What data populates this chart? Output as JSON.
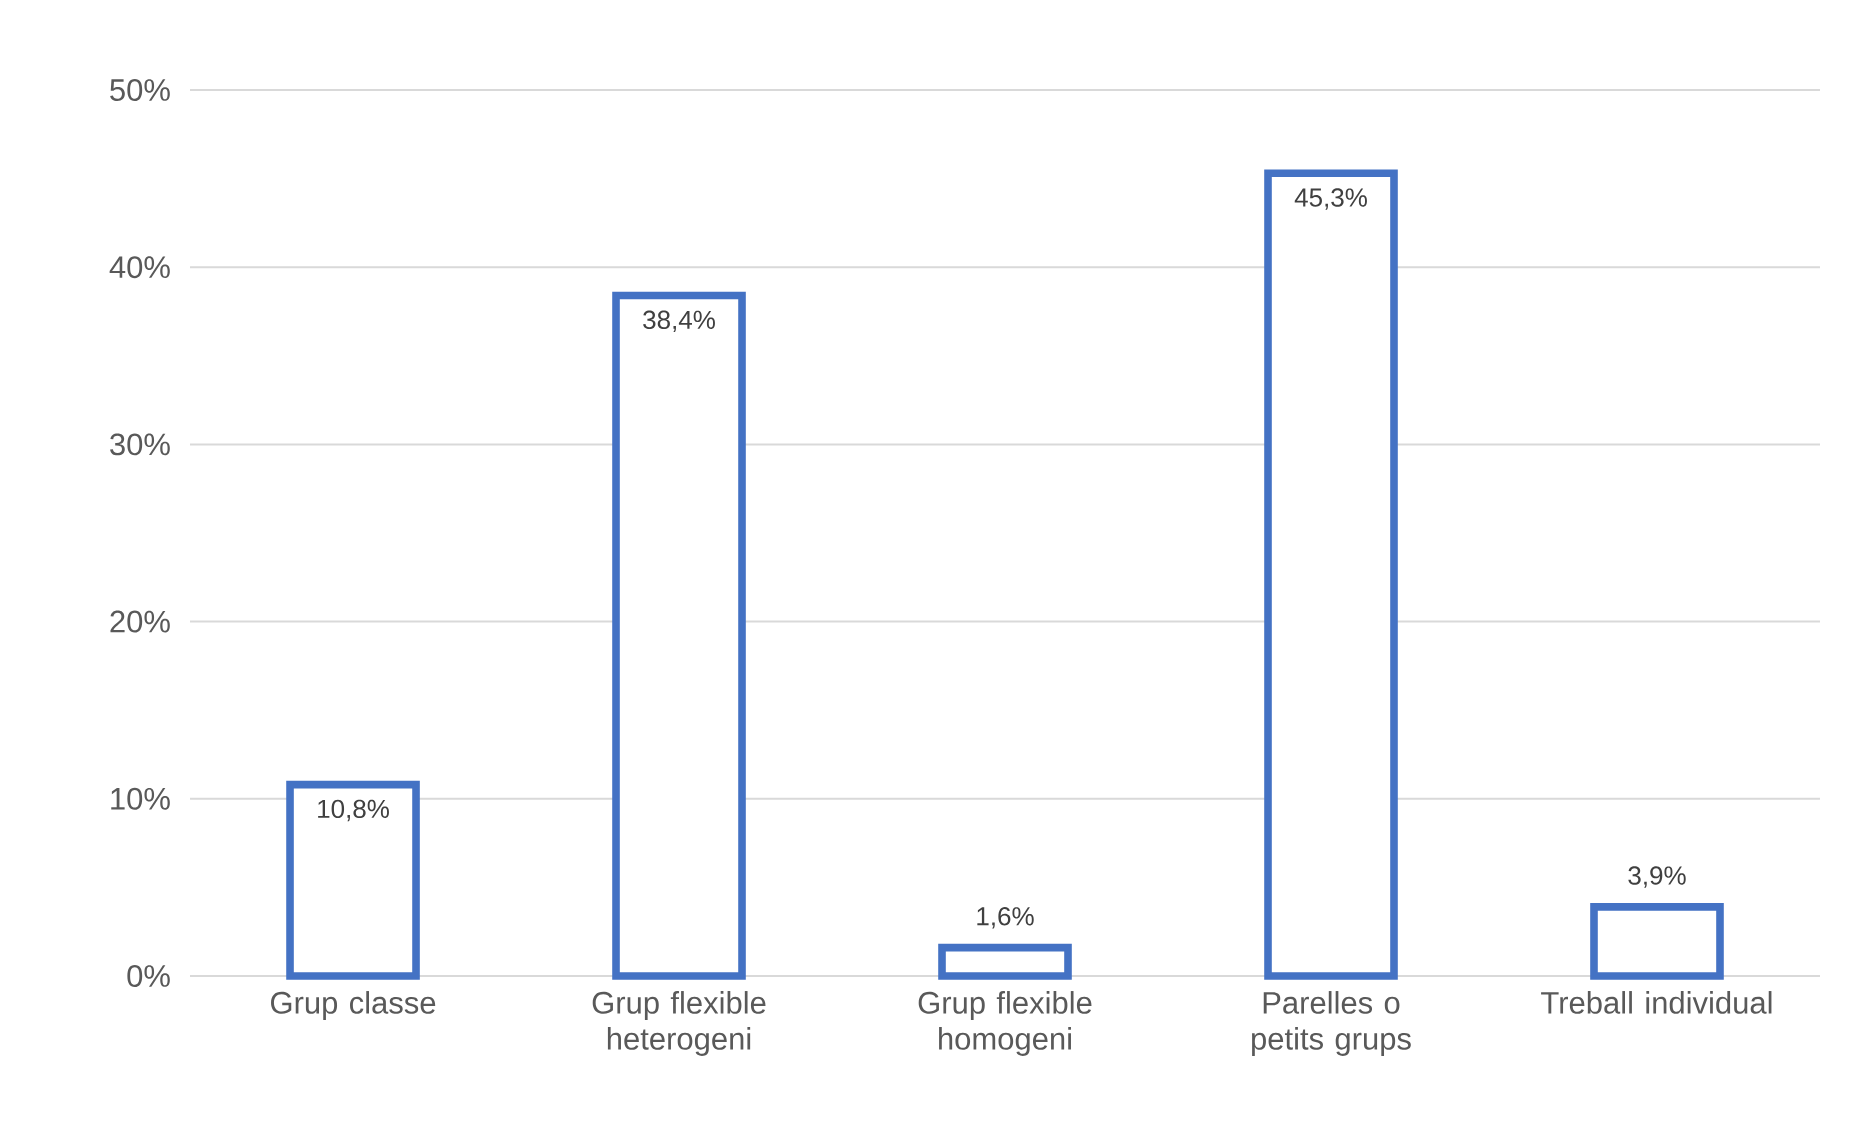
{
  "chart_data": {
    "type": "bar",
    "categories": [
      "Grup classe",
      "Grup flexible heterogeni",
      "Grup flexible homogeni",
      "Parelles o petits grups",
      "Treball individual"
    ],
    "values": [
      10.8,
      38.4,
      1.6,
      45.3,
      3.9
    ],
    "value_labels": [
      "10,8%",
      "38,4%",
      "1,6%",
      "45,3%",
      "3,9%"
    ],
    "color": "#4472c4",
    "ylim": [
      0,
      50
    ],
    "yticks": [
      {
        "value": 0,
        "label": "0%"
      },
      {
        "value": 10,
        "label": "10%"
      },
      {
        "value": 20,
        "label": "20%"
      },
      {
        "value": 30,
        "label": "30%"
      },
      {
        "value": 40,
        "label": "40%"
      },
      {
        "value": 50,
        "label": "50%"
      }
    ],
    "grid": "y"
  }
}
